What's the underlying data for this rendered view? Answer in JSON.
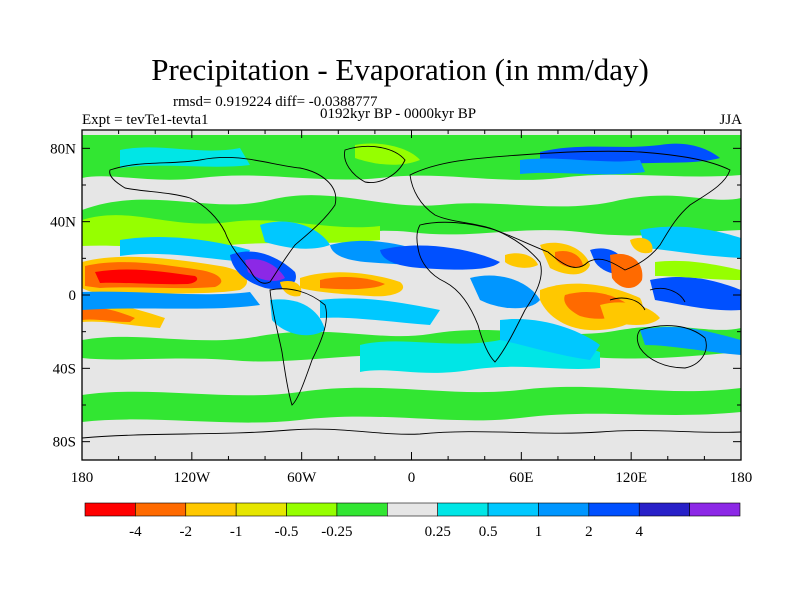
{
  "chart_data": {
    "type": "heatmap",
    "title": "Precipitation - Evaporation (in mm/day)",
    "stats_text": "rmsd= 0.919224 diff= -0.0388777",
    "left_label": "Expt = tevTe1-tevta1",
    "center_label": "0192kyr BP - 0000kyr BP",
    "right_label": "JJA",
    "x_ticks": [
      "180",
      "120W",
      "60W",
      "0",
      "60E",
      "120E",
      "180"
    ],
    "x_tick_values": [
      -180,
      -120,
      -60,
      0,
      60,
      120,
      180
    ],
    "y_ticks": [
      "80N",
      "40N",
      "0",
      "40S",
      "80S"
    ],
    "y_tick_values": [
      80,
      40,
      0,
      -40,
      -80
    ],
    "xlim": [
      -180,
      180
    ],
    "ylim": [
      -90,
      90
    ],
    "colorbar": {
      "colors": [
        "#ff0000",
        "#ff6a00",
        "#ffc800",
        "#e6e600",
        "#96ff00",
        "#32e632",
        "#e6e6e6",
        "#00e6e6",
        "#00c8ff",
        "#0096ff",
        "#0050ff",
        "#2820c8",
        "#8c28e6"
      ],
      "labels": [
        "-4",
        "-2",
        "-1",
        "-0.5",
        "-0.25",
        "0.25",
        "0.5",
        "1",
        "2",
        "4"
      ],
      "label_boundaries": [
        1,
        2,
        3,
        4,
        5,
        7,
        8,
        9,
        10,
        11
      ]
    },
    "field_features": [
      {
        "name": "tropical-pacific-north-drying",
        "lon": -150,
        "lat": 8,
        "value": -4
      },
      {
        "name": "tropical-pacific-north-drying-2",
        "lon": -120,
        "lat": 6,
        "value": -2
      },
      {
        "name": "central-america-wetting",
        "lon": -90,
        "lat": 8,
        "value": 4
      },
      {
        "name": "tropical-atlantic-drying",
        "lon": -40,
        "lat": 4,
        "value": -2
      },
      {
        "name": "west-africa-wetting",
        "lon": 0,
        "lat": 12,
        "value": 1
      },
      {
        "name": "indian-ocean-drying",
        "lon": 80,
        "lat": 2,
        "value": -2
      },
      {
        "name": "south-asia-drying",
        "lon": 95,
        "lat": 18,
        "value": -2
      },
      {
        "name": "indonesia-drying",
        "lon": 110,
        "lat": -8,
        "value": -2
      },
      {
        "name": "west-pacific-wetting",
        "lon": 150,
        "lat": 4,
        "value": 2
      },
      {
        "name": "southern-ocean-wetting",
        "lon": -20,
        "lat": -40,
        "value": 0.5
      },
      {
        "name": "arctic-siberia-wetting",
        "lon": 60,
        "lat": 72,
        "value": 2
      },
      {
        "name": "north-pacific-band",
        "lon": -150,
        "lat": 42,
        "value": -0.5
      }
    ]
  }
}
